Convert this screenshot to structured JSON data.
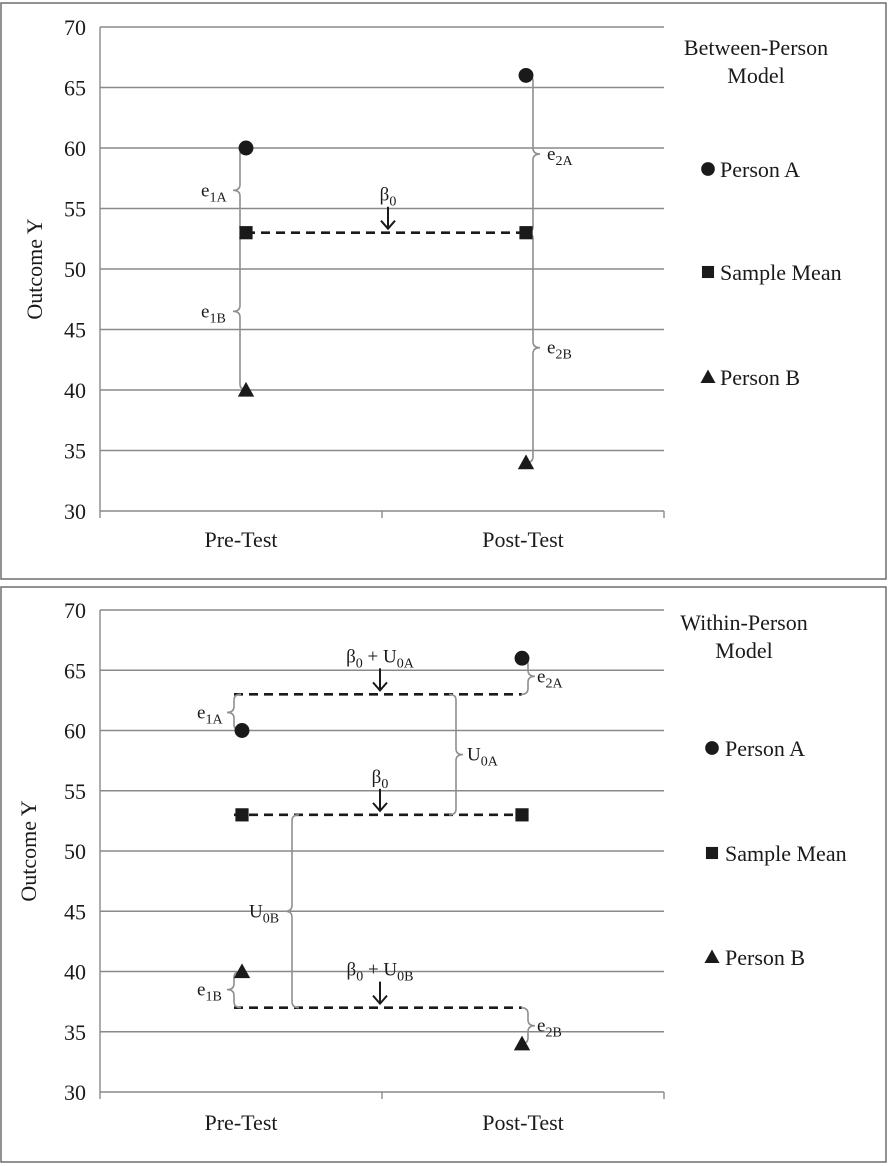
{
  "chart_data": [
    {
      "type": "scatter",
      "title": [
        "Between-Person",
        "Model"
      ],
      "ylabel": "Outcome Y",
      "ylim": [
        30,
        70
      ],
      "yticks": [
        30,
        35,
        40,
        45,
        50,
        55,
        60,
        65,
        70
      ],
      "categories": [
        "Pre-Test",
        "Post-Test"
      ],
      "grid": true,
      "legend_position": "right",
      "series": [
        {
          "name": "Person A",
          "marker": "circle",
          "values": [
            60,
            66
          ]
        },
        {
          "name": "Sample Mean",
          "marker": "square",
          "values": [
            53,
            53
          ]
        },
        {
          "name": "Person B",
          "marker": "triangle",
          "values": [
            40,
            34
          ]
        }
      ],
      "reference_lines": [
        {
          "y": 53,
          "label": "β",
          "label_sub": "0"
        }
      ],
      "braces": [
        {
          "label": "e",
          "sub": "1A",
          "x": "Pre-Test",
          "y1": 53,
          "y2": 60
        },
        {
          "label": "e",
          "sub": "1B",
          "x": "Pre-Test",
          "y1": 40,
          "y2": 53
        },
        {
          "label": "e",
          "sub": "2A",
          "x": "Post-Test",
          "y1": 53,
          "y2": 66
        },
        {
          "label": "e",
          "sub": "2B",
          "x": "Post-Test",
          "y1": 34,
          "y2": 53
        }
      ]
    },
    {
      "type": "scatter",
      "title": [
        "Within-Person",
        "Model"
      ],
      "ylabel": "Outcome Y",
      "ylim": [
        30,
        70
      ],
      "yticks": [
        30,
        35,
        40,
        45,
        50,
        55,
        60,
        65,
        70
      ],
      "categories": [
        "Pre-Test",
        "Post-Test"
      ],
      "grid": true,
      "legend_position": "right",
      "series": [
        {
          "name": "Person A",
          "marker": "circle",
          "values": [
            60,
            66
          ]
        },
        {
          "name": "Sample Mean",
          "marker": "square",
          "values": [
            53,
            53
          ]
        },
        {
          "name": "Person B",
          "marker": "triangle",
          "values": [
            40,
            34
          ]
        }
      ],
      "reference_lines": [
        {
          "y": 63,
          "label": "β",
          "label_sub": "0",
          "label_suffix": " + U",
          "label_suffix_sub": "0A"
        },
        {
          "y": 53,
          "label": "β",
          "label_sub": "0"
        },
        {
          "y": 37,
          "label": "β",
          "label_sub": "0",
          "label_suffix": " + U",
          "label_suffix_sub": "0B"
        }
      ],
      "braces": [
        {
          "label": "e",
          "sub": "1A",
          "x": "Pre-Test",
          "y1": 60,
          "y2": 63
        },
        {
          "label": "e",
          "sub": "2A",
          "x": "Post-Test",
          "y1": 63,
          "y2": 66
        },
        {
          "label": "U",
          "sub": "0A",
          "x": "between",
          "y1": 53,
          "y2": 63
        },
        {
          "label": "U",
          "sub": "0B",
          "x": "between",
          "y1": 37,
          "y2": 53
        },
        {
          "label": "e",
          "sub": "1B",
          "x": "Pre-Test",
          "y1": 37,
          "y2": 40
        },
        {
          "label": "e",
          "sub": "2B",
          "x": "Post-Test",
          "y1": 34,
          "y2": 37
        }
      ]
    }
  ]
}
